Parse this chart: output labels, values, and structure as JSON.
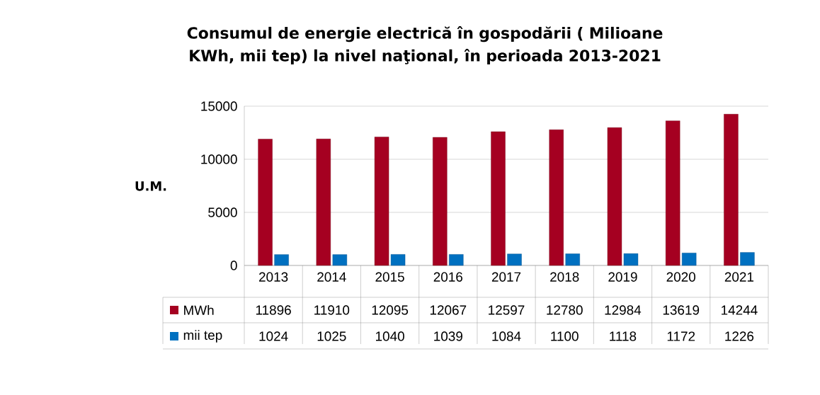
{
  "chart_data": {
    "type": "bar",
    "title": "Consumul de energie electrică în gospodării ( Milioane KWh, mii tep) la nivel naţional, în perioada 2013-2021",
    "ylabel": "U.M.",
    "categories": [
      "2013",
      "2014",
      "2015",
      "2016",
      "2017",
      "2018",
      "2019",
      "2020",
      "2021"
    ],
    "series": [
      {
        "name": "MWh",
        "color": "#a50021",
        "values": [
          11896,
          11910,
          12095,
          12067,
          12597,
          12780,
          12984,
          13619,
          14244
        ]
      },
      {
        "name": "mii tep",
        "color": "#0070c0",
        "values": [
          1024,
          1025,
          1040,
          1039,
          1084,
          1100,
          1118,
          1172,
          1226
        ]
      }
    ],
    "ylim": [
      0,
      15000
    ],
    "yticks": [
      0,
      5000,
      10000,
      15000
    ],
    "grid": "y",
    "legend": "bottom",
    "data_labels": true
  }
}
